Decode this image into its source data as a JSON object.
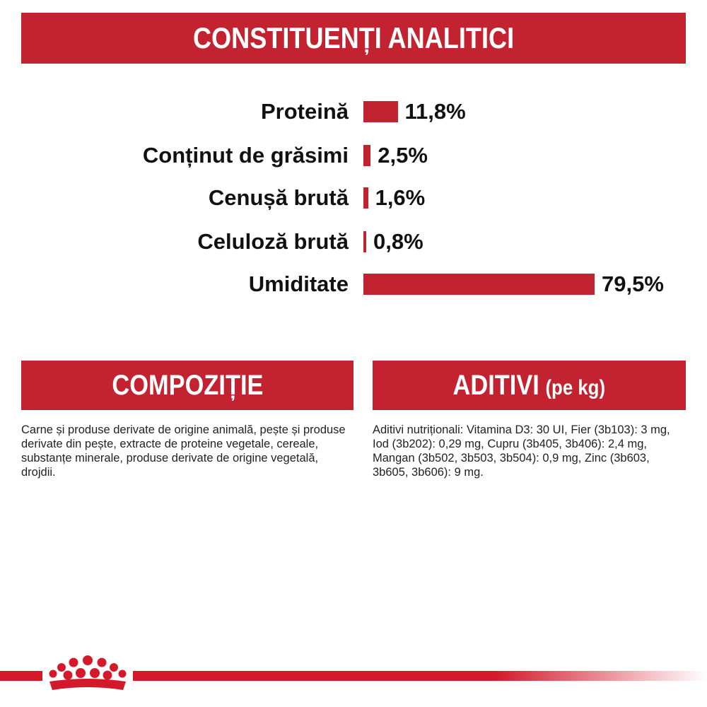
{
  "header": {
    "title": "CONSTITUENȚI ANALITICI"
  },
  "chart_data": {
    "type": "bar",
    "orientation": "horizontal",
    "title": "CONSTITUENȚI ANALITICI",
    "categories": [
      "Proteină",
      "Conținut de grăsimi",
      "Cenușă brută",
      "Celuloză brută",
      "Umiditate"
    ],
    "values": [
      11.8,
      2.5,
      1.6,
      0.8,
      79.5
    ],
    "value_labels": [
      "11,8%",
      "2,5%",
      "1,6%",
      "0,8%",
      "79,5%"
    ],
    "unit": "%",
    "xlim": [
      0,
      79.5
    ],
    "grid": false,
    "bar_color": "#c32230"
  },
  "composition": {
    "title": "COMPOZIȚIE",
    "text": "Carne și produse derivate de origine animală, pește și produse derivate din pește, extracte de proteine vegetale, cereale, substanțe minerale, produse derivate de origine vegetală, drojdii."
  },
  "additives": {
    "title": "ADITIVI",
    "title_unit": "(pe kg)",
    "text": "Aditivi nutriționali: Vitamina D3: 30 UI, Fier (3b103): 3 mg, Iod (3b202): 0,29 mg, Cupru (3b405, 3b406): 2,4 mg, Mangan (3b502, 3b503, 3b504): 0,9 mg, Zinc (3b603, 3b605, 3b606): 9 mg."
  },
  "colors": {
    "brand_red": "#c32230",
    "footer_red": "#d4192b",
    "text": "#111111"
  },
  "footer": {
    "logo_icon": "royal-canin-crown-icon"
  }
}
